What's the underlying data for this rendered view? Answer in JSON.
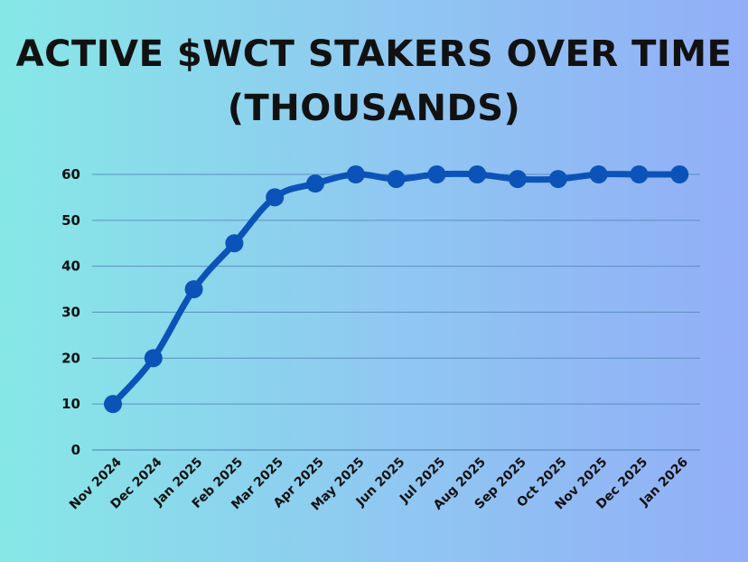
{
  "title": {
    "line1": "ACTIVE $WCT STAKERS OVER TIME",
    "line2": "(THOUSANDS)"
  },
  "colors": {
    "line": "#0b53b8",
    "gridline": "#5d8fbf",
    "text": "#111111"
  },
  "chart_data": {
    "type": "line",
    "title": "ACTIVE $WCT STAKERS OVER TIME (THOUSANDS)",
    "categories": [
      "Nov 2024",
      "Dec 2024",
      "Jan 2025",
      "Feb 2025",
      "Mar 2025",
      "Apr 2025",
      "May 2025",
      "Jun 2025",
      "Jul 2025",
      "Aug 2025",
      "Sep 2025",
      "Oct 2025",
      "Nov 2025",
      "Dec 2025",
      "Jan 2026"
    ],
    "series": [
      {
        "values": [
          10,
          20,
          35,
          45,
          55,
          58,
          60,
          59,
          60,
          60,
          59,
          59,
          60,
          60,
          60
        ]
      }
    ],
    "ylim": [
      0,
      60
    ],
    "yticks": [
      0,
      10,
      20,
      30,
      40,
      50,
      60
    ],
    "grid": true,
    "legend": "none"
  }
}
